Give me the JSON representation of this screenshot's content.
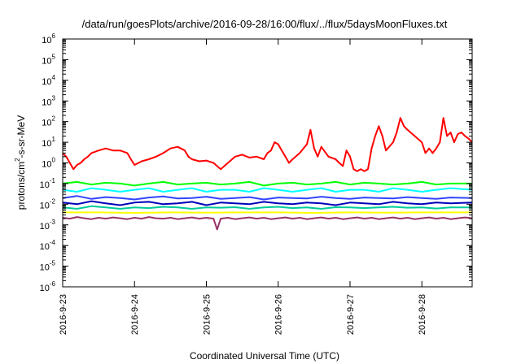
{
  "chart_data": {
    "type": "line",
    "title": "/data/run/goesPlots/archive/2016-09-28/16:00/flux/../flux/5daysMoonFluxes.txt",
    "xlabel": "Coordinated Universal Time (UTC)",
    "ylabel": "protons/cm2-s-sr-MeV",
    "ylabel_parts": {
      "pre": "protons/cm",
      "sup": "2",
      "post": "-s-sr-MeV"
    },
    "yscale": "log",
    "ylim": [
      1e-06,
      1000000.0
    ],
    "xlim": [
      0,
      5.7
    ],
    "grid": false,
    "legend": "none",
    "yticks": [
      {
        "value": 1e-06,
        "base": "10",
        "exp": "-6"
      },
      {
        "value": 1e-05,
        "base": "10",
        "exp": "-5"
      },
      {
        "value": 0.0001,
        "base": "10",
        "exp": "-4"
      },
      {
        "value": 0.001,
        "base": "10",
        "exp": "-3"
      },
      {
        "value": 0.01,
        "base": "10",
        "exp": "-2"
      },
      {
        "value": 0.1,
        "base": "10",
        "exp": "-1"
      },
      {
        "value": 1,
        "base": "10",
        "exp": "0"
      },
      {
        "value": 10.0,
        "base": "10",
        "exp": "1"
      },
      {
        "value": 100.0,
        "base": "10",
        "exp": "2"
      },
      {
        "value": 1000.0,
        "base": "10",
        "exp": "3"
      },
      {
        "value": 10000.0,
        "base": "10",
        "exp": "4"
      },
      {
        "value": 100000.0,
        "base": "10",
        "exp": "5"
      },
      {
        "value": 1000000.0,
        "base": "10",
        "exp": "6"
      }
    ],
    "xticks": [
      {
        "value": 0,
        "label": "2016-9-23"
      },
      {
        "value": 1,
        "label": "2016-9-24"
      },
      {
        "value": 2,
        "label": "2016-9-25"
      },
      {
        "value": 3,
        "label": "2016-9-26"
      },
      {
        "value": 4,
        "label": "2016-9-27"
      },
      {
        "value": 5,
        "label": "2016-9-28"
      }
    ],
    "series": [
      {
        "color": "#ff0000",
        "x": [
          0,
          0.05,
          0.1,
          0.15,
          0.2,
          0.25,
          0.3,
          0.35,
          0.4,
          0.5,
          0.6,
          0.7,
          0.8,
          0.9,
          0.95,
          1.0,
          1.1,
          1.2,
          1.3,
          1.4,
          1.5,
          1.6,
          1.7,
          1.75,
          1.8,
          1.9,
          2.0,
          2.1,
          2.2,
          2.3,
          2.4,
          2.5,
          2.6,
          2.7,
          2.8,
          2.85,
          2.9,
          2.95,
          3.0,
          3.05,
          3.1,
          3.15,
          3.2,
          3.3,
          3.4,
          3.45,
          3.5,
          3.55,
          3.6,
          3.7,
          3.8,
          3.85,
          3.9,
          3.95,
          4.0,
          4.05,
          4.1,
          4.15,
          4.2,
          4.25,
          4.3,
          4.35,
          4.4,
          4.45,
          4.5,
          4.6,
          4.65,
          4.7,
          4.75,
          4.8,
          4.9,
          5.0,
          5.05,
          5.1,
          5.15,
          5.2,
          5.25,
          5.3,
          5.35,
          5.4,
          5.45,
          5.5,
          5.55,
          5.6,
          5.65,
          5.7
        ],
        "y": [
          3,
          2,
          1,
          0.5,
          0.8,
          1.0,
          1.5,
          2,
          3,
          4,
          5,
          4,
          4,
          3,
          1.5,
          0.8,
          1.2,
          1.5,
          2,
          3,
          5,
          6,
          4,
          2,
          1.5,
          1.2,
          1.3,
          1.0,
          0.5,
          1.0,
          2,
          2.5,
          1.8,
          2,
          1.5,
          3,
          4,
          10,
          8,
          4,
          2,
          1,
          1.5,
          3,
          8,
          40,
          5,
          2,
          6,
          2,
          1.5,
          1,
          0.7,
          4,
          2,
          0.5,
          0.4,
          0.5,
          0.4,
          0.5,
          5,
          20,
          60,
          20,
          4,
          10,
          30,
          150,
          60,
          40,
          20,
          10,
          3,
          5,
          3,
          5,
          10,
          150,
          20,
          30,
          10,
          25,
          30,
          20,
          15,
          10
        ]
      },
      {
        "color": "#00ff00",
        "x": [
          0,
          0.2,
          0.4,
          0.6,
          0.8,
          1.0,
          1.2,
          1.4,
          1.6,
          1.8,
          2.0,
          2.2,
          2.4,
          2.6,
          2.8,
          3.0,
          3.2,
          3.4,
          3.6,
          3.8,
          4.0,
          4.2,
          4.4,
          4.6,
          4.8,
          5.0,
          5.2,
          5.4,
          5.7
        ],
        "y": [
          0.1,
          0.12,
          0.09,
          0.11,
          0.1,
          0.08,
          0.1,
          0.12,
          0.09,
          0.1,
          0.11,
          0.09,
          0.1,
          0.12,
          0.08,
          0.1,
          0.11,
          0.09,
          0.1,
          0.12,
          0.09,
          0.11,
          0.1,
          0.09,
          0.1,
          0.12,
          0.09,
          0.1,
          0.1
        ]
      },
      {
        "color": "#00ffff",
        "x": [
          0,
          0.2,
          0.4,
          0.6,
          0.8,
          1.0,
          1.2,
          1.4,
          1.6,
          1.8,
          2.0,
          2.2,
          2.4,
          2.6,
          2.8,
          3.0,
          3.2,
          3.4,
          3.6,
          3.8,
          4.0,
          4.2,
          4.4,
          4.6,
          4.8,
          5.0,
          5.2,
          5.4,
          5.7
        ],
        "y": [
          0.05,
          0.04,
          0.06,
          0.05,
          0.04,
          0.05,
          0.06,
          0.04,
          0.05,
          0.06,
          0.04,
          0.05,
          0.05,
          0.04,
          0.06,
          0.05,
          0.04,
          0.05,
          0.06,
          0.04,
          0.05,
          0.05,
          0.04,
          0.06,
          0.05,
          0.04,
          0.05,
          0.06,
          0.05
        ]
      },
      {
        "color": "#3344ff",
        "x": [
          0,
          0.2,
          0.4,
          0.6,
          0.8,
          1.0,
          1.2,
          1.4,
          1.6,
          1.8,
          2.0,
          2.2,
          2.4,
          2.6,
          2.8,
          3.0,
          3.2,
          3.4,
          3.6,
          3.8,
          4.0,
          4.2,
          4.4,
          4.6,
          4.8,
          5.0,
          5.2,
          5.4,
          5.7
        ],
        "y": [
          0.02,
          0.025,
          0.018,
          0.022,
          0.02,
          0.017,
          0.021,
          0.024,
          0.019,
          0.02,
          0.023,
          0.018,
          0.02,
          0.022,
          0.017,
          0.021,
          0.02,
          0.019,
          0.023,
          0.02,
          0.018,
          0.021,
          0.02,
          0.019,
          0.022,
          0.02,
          0.018,
          0.021,
          0.02
        ]
      },
      {
        "color": "#0000bb",
        "x": [
          0,
          0.2,
          0.4,
          0.6,
          0.8,
          1.0,
          1.2,
          1.4,
          1.6,
          1.8,
          2.0,
          2.2,
          2.4,
          2.6,
          2.8,
          3.0,
          3.2,
          3.4,
          3.6,
          3.8,
          4.0,
          4.2,
          4.4,
          4.6,
          4.8,
          5.0,
          5.2,
          5.4,
          5.7
        ],
        "y": [
          0.012,
          0.01,
          0.014,
          0.011,
          0.009,
          0.012,
          0.013,
          0.01,
          0.011,
          0.013,
          0.009,
          0.012,
          0.011,
          0.01,
          0.013,
          0.011,
          0.01,
          0.012,
          0.011,
          0.009,
          0.012,
          0.011,
          0.01,
          0.013,
          0.011,
          0.01,
          0.012,
          0.011,
          0.012
        ]
      },
      {
        "color": "#00cc99",
        "x": [
          0,
          0.2,
          0.4,
          0.6,
          0.8,
          1.0,
          1.2,
          1.4,
          1.6,
          1.8,
          2.0,
          2.2,
          2.4,
          2.6,
          2.8,
          3.0,
          3.2,
          3.4,
          3.6,
          3.8,
          4.0,
          4.2,
          4.4,
          4.6,
          4.8,
          5.0,
          5.2,
          5.4,
          5.7
        ],
        "y": [
          0.007,
          0.006,
          0.008,
          0.007,
          0.006,
          0.007,
          0.0065,
          0.0075,
          0.007,
          0.006,
          0.007,
          0.0068,
          0.0072,
          0.006,
          0.007,
          0.0075,
          0.0065,
          0.007,
          0.006,
          0.0072,
          0.007,
          0.0065,
          0.007,
          0.0075,
          0.0068,
          0.007,
          0.0062,
          0.007,
          0.007
        ]
      },
      {
        "color": "#ffff00",
        "x": [
          0,
          0.5,
          1.0,
          1.5,
          2.0,
          2.5,
          3.0,
          3.5,
          4.0,
          4.5,
          5.0,
          5.5,
          5.7
        ],
        "y": [
          0.004,
          0.004,
          0.0038,
          0.004,
          0.0039,
          0.004,
          0.004,
          0.0038,
          0.004,
          0.0039,
          0.004,
          0.004,
          0.004
        ]
      },
      {
        "color": "#993366",
        "x": [
          0,
          0.1,
          0.2,
          0.3,
          0.4,
          0.5,
          0.6,
          0.7,
          0.8,
          0.9,
          1.0,
          1.1,
          1.2,
          1.3,
          1.4,
          1.5,
          1.6,
          1.7,
          1.8,
          1.9,
          2.0,
          2.1,
          2.15,
          2.2,
          2.3,
          2.4,
          2.5,
          2.6,
          2.7,
          2.8,
          2.9,
          3.0,
          3.1,
          3.2,
          3.3,
          3.4,
          3.5,
          3.6,
          3.7,
          3.8,
          3.9,
          4.0,
          4.1,
          4.2,
          4.3,
          4.4,
          4.5,
          4.6,
          4.7,
          4.8,
          4.9,
          5.0,
          5.1,
          5.2,
          5.3,
          5.4,
          5.5,
          5.6,
          5.7
        ],
        "y": [
          0.0022,
          0.002,
          0.0024,
          0.0021,
          0.0019,
          0.0022,
          0.002,
          0.0023,
          0.0021,
          0.0019,
          0.0022,
          0.002,
          0.0024,
          0.0021,
          0.002,
          0.0022,
          0.0019,
          0.0021,
          0.0023,
          0.002,
          0.0022,
          0.002,
          0.0006,
          0.002,
          0.0022,
          0.0019,
          0.0021,
          0.0023,
          0.002,
          0.0022,
          0.0019,
          0.0021,
          0.0023,
          0.002,
          0.0022,
          0.0019,
          0.0021,
          0.0023,
          0.002,
          0.0022,
          0.0019,
          0.0021,
          0.0023,
          0.002,
          0.0022,
          0.0019,
          0.0021,
          0.0023,
          0.002,
          0.0022,
          0.0019,
          0.0021,
          0.0023,
          0.002,
          0.0022,
          0.0019,
          0.0021,
          0.0023,
          0.0021
        ]
      }
    ]
  }
}
